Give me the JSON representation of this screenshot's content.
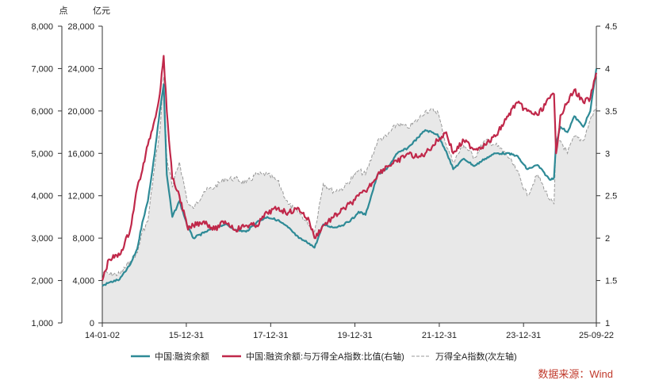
{
  "chart_data": {
    "type": "line",
    "title": "",
    "source": "数据来源：Wind",
    "units": {
      "left_outer": "点",
      "left_inner": "亿元"
    },
    "x_ticks": [
      "14-01-02",
      "15-12-31",
      "17-12-31",
      "19-12-31",
      "21-12-31",
      "23-12-31",
      "25-09-22"
    ],
    "x_tick_dates": [
      "2014-01-02",
      "2015-12-31",
      "2017-12-31",
      "2019-12-31",
      "2021-12-31",
      "2023-12-31",
      "2025-09-22"
    ],
    "axes": {
      "left_outer": {
        "label": "点",
        "ticks": [
          "1,000",
          "2,000",
          "3,000",
          "4,000",
          "5,000",
          "6,000",
          "7,000",
          "8,000"
        ],
        "range": [
          1000,
          8000
        ]
      },
      "left_inner": {
        "label": "亿元",
        "ticks": [
          "0",
          "4,000",
          "8,000",
          "12,000",
          "16,000",
          "20,000",
          "24,000",
          "28,000"
        ],
        "range": [
          0,
          28000
        ]
      },
      "right": {
        "ticks": [
          "1",
          "1.5",
          "2",
          "2.5",
          "3",
          "3.5",
          "4",
          "4.5"
        ],
        "range": [
          1,
          4.5
        ]
      }
    },
    "legend": [
      {
        "name": "中国:融资余额",
        "color": "#2e8a96",
        "style": "solid"
      },
      {
        "name": "中国:融资余额:与万得全A指数:比值(右轴)",
        "color": "#c0284a",
        "style": "solid"
      },
      {
        "name": "万得全A指数(次左轴)",
        "color": "#9a9a9a",
        "style": "dashed"
      }
    ],
    "series": [
      {
        "name": "中国:融资余额",
        "axis": "left_inner",
        "color": "#2e8a96",
        "points": [
          [
            "2014-01-02",
            3500
          ],
          [
            "2014-03-01",
            3800
          ],
          [
            "2014-06-01",
            4100
          ],
          [
            "2014-09-01",
            5500
          ],
          [
            "2014-11-01",
            7000
          ],
          [
            "2014-12-15",
            9500
          ],
          [
            "2015-02-01",
            11500
          ],
          [
            "2015-04-01",
            16000
          ],
          [
            "2015-05-15",
            20000
          ],
          [
            "2015-06-18",
            22500
          ],
          [
            "2015-07-15",
            14000
          ],
          [
            "2015-09-01",
            10000
          ],
          [
            "2015-11-01",
            11500
          ],
          [
            "2016-01-15",
            9000
          ],
          [
            "2016-03-01",
            8000
          ],
          [
            "2016-06-01",
            8500
          ],
          [
            "2016-09-01",
            9000
          ],
          [
            "2016-12-01",
            9300
          ],
          [
            "2017-03-01",
            8800
          ],
          [
            "2017-06-01",
            8600
          ],
          [
            "2017-09-01",
            9500
          ],
          [
            "2017-12-01",
            10000
          ],
          [
            "2018-03-01",
            9700
          ],
          [
            "2018-06-01",
            9000
          ],
          [
            "2018-09-01",
            8000
          ],
          [
            "2018-12-01",
            7500
          ],
          [
            "2019-01-15",
            7100
          ],
          [
            "2019-04-01",
            9300
          ],
          [
            "2019-07-01",
            9000
          ],
          [
            "2019-10-01",
            9300
          ],
          [
            "2019-12-31",
            10000
          ],
          [
            "2020-02-01",
            10500
          ],
          [
            "2020-04-01",
            10200
          ],
          [
            "2020-07-15",
            14000
          ],
          [
            "2020-10-01",
            14500
          ],
          [
            "2021-01-01",
            16000
          ],
          [
            "2021-04-01",
            16500
          ],
          [
            "2021-07-01",
            17500
          ],
          [
            "2021-09-01",
            18200
          ],
          [
            "2021-12-15",
            17800
          ],
          [
            "2022-03-01",
            16200
          ],
          [
            "2022-05-01",
            14500
          ],
          [
            "2022-08-01",
            15500
          ],
          [
            "2022-11-01",
            14800
          ],
          [
            "2023-02-01",
            15500
          ],
          [
            "2023-05-01",
            16000
          ],
          [
            "2023-08-01",
            16000
          ],
          [
            "2023-11-01",
            15800
          ],
          [
            "2024-02-01",
            14500
          ],
          [
            "2024-05-01",
            14900
          ],
          [
            "2024-08-15",
            13500
          ],
          [
            "2024-09-20",
            13700
          ],
          [
            "2024-10-08",
            17000
          ],
          [
            "2024-11-15",
            18500
          ],
          [
            "2025-01-15",
            18000
          ],
          [
            "2025-03-15",
            19500
          ],
          [
            "2025-06-01",
            18500
          ],
          [
            "2025-08-01",
            20000
          ],
          [
            "2025-09-22",
            24000
          ]
        ]
      },
      {
        "name": "中国:融资余额:与万得全A指数:比值(右轴)",
        "axis": "right",
        "color": "#c0284a",
        "points": [
          [
            "2014-01-02",
            1.5
          ],
          [
            "2014-03-01",
            1.75
          ],
          [
            "2014-06-01",
            1.8
          ],
          [
            "2014-09-01",
            2.1
          ],
          [
            "2014-11-01",
            2.6
          ],
          [
            "2014-12-15",
            2.8
          ],
          [
            "2015-02-01",
            3.1
          ],
          [
            "2015-04-01",
            3.4
          ],
          [
            "2015-05-15",
            3.7
          ],
          [
            "2015-06-18",
            4.15
          ],
          [
            "2015-07-15",
            3.5
          ],
          [
            "2015-09-01",
            2.7
          ],
          [
            "2015-11-01",
            2.5
          ],
          [
            "2016-01-15",
            2.1
          ],
          [
            "2016-03-01",
            2.15
          ],
          [
            "2016-06-01",
            2.2
          ],
          [
            "2016-09-01",
            2.1
          ],
          [
            "2016-12-01",
            2.2
          ],
          [
            "2017-03-01",
            2.1
          ],
          [
            "2017-06-01",
            2.15
          ],
          [
            "2017-09-01",
            2.15
          ],
          [
            "2017-12-01",
            2.3
          ],
          [
            "2018-03-01",
            2.35
          ],
          [
            "2018-06-01",
            2.3
          ],
          [
            "2018-09-01",
            2.35
          ],
          [
            "2018-12-01",
            2.2
          ],
          [
            "2019-01-15",
            2.0
          ],
          [
            "2019-04-01",
            2.15
          ],
          [
            "2019-07-01",
            2.25
          ],
          [
            "2019-10-01",
            2.35
          ],
          [
            "2019-12-31",
            2.45
          ],
          [
            "2020-02-01",
            2.5
          ],
          [
            "2020-04-01",
            2.55
          ],
          [
            "2020-07-15",
            2.75
          ],
          [
            "2020-10-01",
            2.85
          ],
          [
            "2021-01-01",
            2.9
          ],
          [
            "2021-04-01",
            3.0
          ],
          [
            "2021-07-01",
            2.95
          ],
          [
            "2021-09-01",
            3.0
          ],
          [
            "2021-12-15",
            3.15
          ],
          [
            "2022-03-01",
            3.25
          ],
          [
            "2022-05-01",
            3.0
          ],
          [
            "2022-08-01",
            3.15
          ],
          [
            "2022-11-01",
            3.05
          ],
          [
            "2023-02-01",
            3.1
          ],
          [
            "2023-05-01",
            3.2
          ],
          [
            "2023-08-01",
            3.4
          ],
          [
            "2023-11-01",
            3.6
          ],
          [
            "2024-02-01",
            3.5
          ],
          [
            "2024-05-01",
            3.45
          ],
          [
            "2024-08-15",
            3.65
          ],
          [
            "2024-09-20",
            3.7
          ],
          [
            "2024-10-08",
            3.0
          ],
          [
            "2024-11-15",
            3.45
          ],
          [
            "2025-01-15",
            3.6
          ],
          [
            "2025-03-15",
            3.75
          ],
          [
            "2025-06-01",
            3.6
          ],
          [
            "2025-08-01",
            3.65
          ],
          [
            "2025-09-22",
            3.95
          ]
        ]
      },
      {
        "name": "万得全A指数(次左轴)",
        "axis": "left_outer",
        "color": "#9a9a9a",
        "dashed": true,
        "points": [
          [
            "2014-01-02",
            2200
          ],
          [
            "2014-03-01",
            2150
          ],
          [
            "2014-06-01",
            2150
          ],
          [
            "2014-09-01",
            2450
          ],
          [
            "2014-11-01",
            2650
          ],
          [
            "2014-12-15",
            3150
          ],
          [
            "2015-02-01",
            3400
          ],
          [
            "2015-04-01",
            4700
          ],
          [
            "2015-05-15",
            5500
          ],
          [
            "2015-06-18",
            6800
          ],
          [
            "2015-07-15",
            4900
          ],
          [
            "2015-09-01",
            4200
          ],
          [
            "2015-11-01",
            4800
          ],
          [
            "2016-01-15",
            3800
          ],
          [
            "2016-03-01",
            3700
          ],
          [
            "2016-06-01",
            4100
          ],
          [
            "2016-09-01",
            4200
          ],
          [
            "2016-12-01",
            4400
          ],
          [
            "2017-03-01",
            4400
          ],
          [
            "2017-06-01",
            4300
          ],
          [
            "2017-09-01",
            4500
          ],
          [
            "2017-12-01",
            4500
          ],
          [
            "2018-03-01",
            4350
          ],
          [
            "2018-06-01",
            3800
          ],
          [
            "2018-09-01",
            3600
          ],
          [
            "2018-12-01",
            3300
          ],
          [
            "2019-01-15",
            3150
          ],
          [
            "2019-04-01",
            4300
          ],
          [
            "2019-07-01",
            4100
          ],
          [
            "2019-10-01",
            4200
          ],
          [
            "2019-12-31",
            4500
          ],
          [
            "2020-02-01",
            4600
          ],
          [
            "2020-04-01",
            4500
          ],
          [
            "2020-07-15",
            5300
          ],
          [
            "2020-10-01",
            5400
          ],
          [
            "2021-01-01",
            5700
          ],
          [
            "2021-04-01",
            5600
          ],
          [
            "2021-07-01",
            5800
          ],
          [
            "2021-09-01",
            6000
          ],
          [
            "2021-12-15",
            6000
          ],
          [
            "2022-03-01",
            5200
          ],
          [
            "2022-05-01",
            4800
          ],
          [
            "2022-08-01",
            5200
          ],
          [
            "2022-11-01",
            4900
          ],
          [
            "2023-02-01",
            5300
          ],
          [
            "2023-05-01",
            5200
          ],
          [
            "2023-08-01",
            5000
          ],
          [
            "2023-11-01",
            4600
          ],
          [
            "2024-02-01",
            4000
          ],
          [
            "2024-05-01",
            4500
          ],
          [
            "2024-08-15",
            3900
          ],
          [
            "2024-09-20",
            3800
          ],
          [
            "2024-10-08",
            5300
          ],
          [
            "2024-11-15",
            5300
          ],
          [
            "2025-01-15",
            5000
          ],
          [
            "2025-03-15",
            5400
          ],
          [
            "2025-06-01",
            5300
          ],
          [
            "2025-08-01",
            5800
          ],
          [
            "2025-09-22",
            6100
          ]
        ]
      }
    ]
  }
}
